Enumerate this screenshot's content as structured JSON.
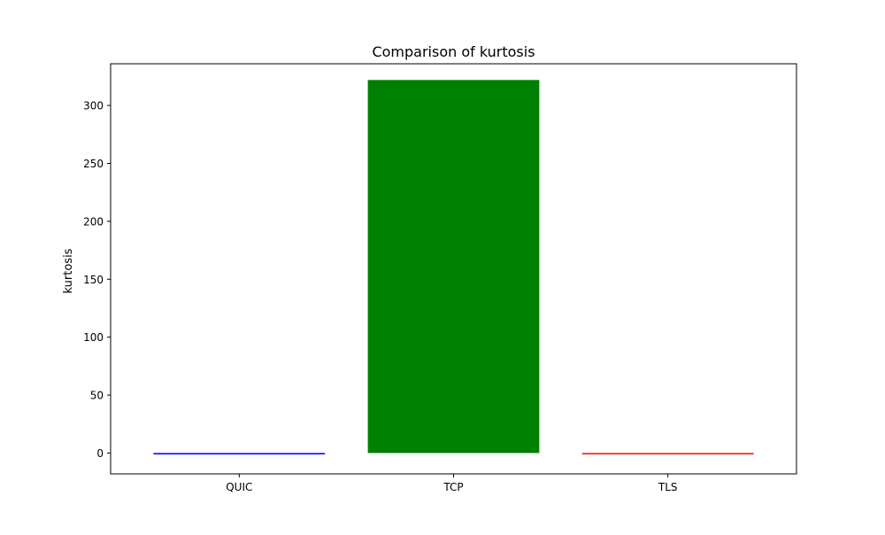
{
  "chart_data": {
    "type": "bar",
    "title": "Comparison of kurtosis",
    "xlabel": "",
    "ylabel": "kurtosis",
    "categories": [
      "QUIC",
      "TCP",
      "TLS"
    ],
    "values": [
      -1.2,
      322,
      0.0
    ],
    "colors": [
      "#0000ff",
      "#008000",
      "#ff0000"
    ],
    "ylim": [
      -18,
      336
    ],
    "yticks": [
      0,
      50,
      100,
      150,
      200,
      250,
      300
    ],
    "grid": false,
    "legend": "none"
  }
}
